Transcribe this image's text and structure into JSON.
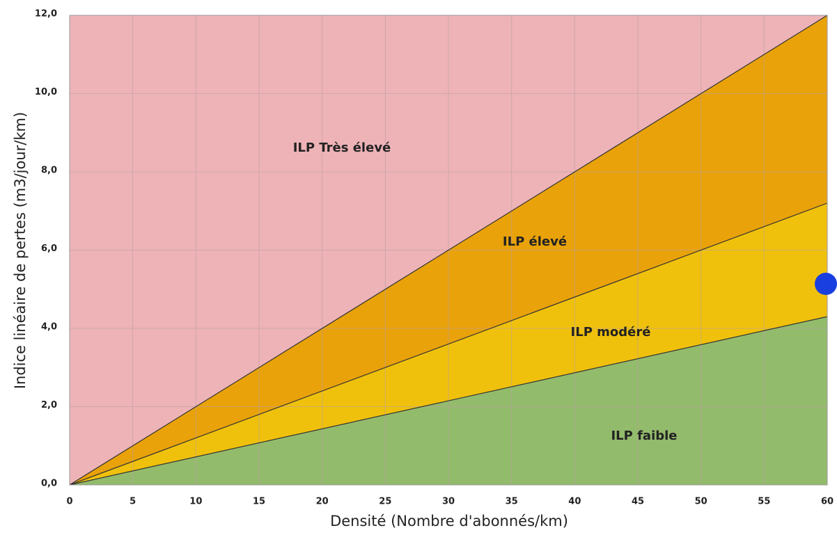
{
  "chart_data": {
    "type": "stacked_area",
    "x_label": "Densité (Nombre d'abonnés/km)",
    "y_label": "Indice linéaire de pertes (m3/jour/km)",
    "x": [
      0,
      60
    ],
    "series": [
      {
        "name": "ILP faible",
        "color": "#93bb6c",
        "values": [
          0,
          4.3
        ]
      },
      {
        "name": "ILP modéré",
        "color": "#f0c10c",
        "values": [
          0,
          2.9
        ]
      },
      {
        "name": "ILP élevé",
        "color": "#e9a20a",
        "values": [
          0,
          4.8
        ]
      },
      {
        "name": "ILP Très élevé",
        "color": "#eeb3b7",
        "values": [
          12,
          0
        ]
      }
    ],
    "xlim": [
      0,
      60
    ],
    "ylim": [
      0,
      12
    ],
    "xticks": [
      0,
      5,
      10,
      15,
      20,
      25,
      30,
      35,
      40,
      45,
      50,
      55,
      60
    ],
    "yticks": [
      {
        "value": 0,
        "label": "0,0"
      },
      {
        "value": 2,
        "label": "2,0"
      },
      {
        "value": 4,
        "label": "4,0"
      },
      {
        "value": 6,
        "label": "6,0"
      },
      {
        "value": 8,
        "label": "8,0"
      },
      {
        "value": 10,
        "label": "10,0"
      },
      {
        "value": 12,
        "label": "12,0"
      }
    ],
    "grid": true
  }
}
